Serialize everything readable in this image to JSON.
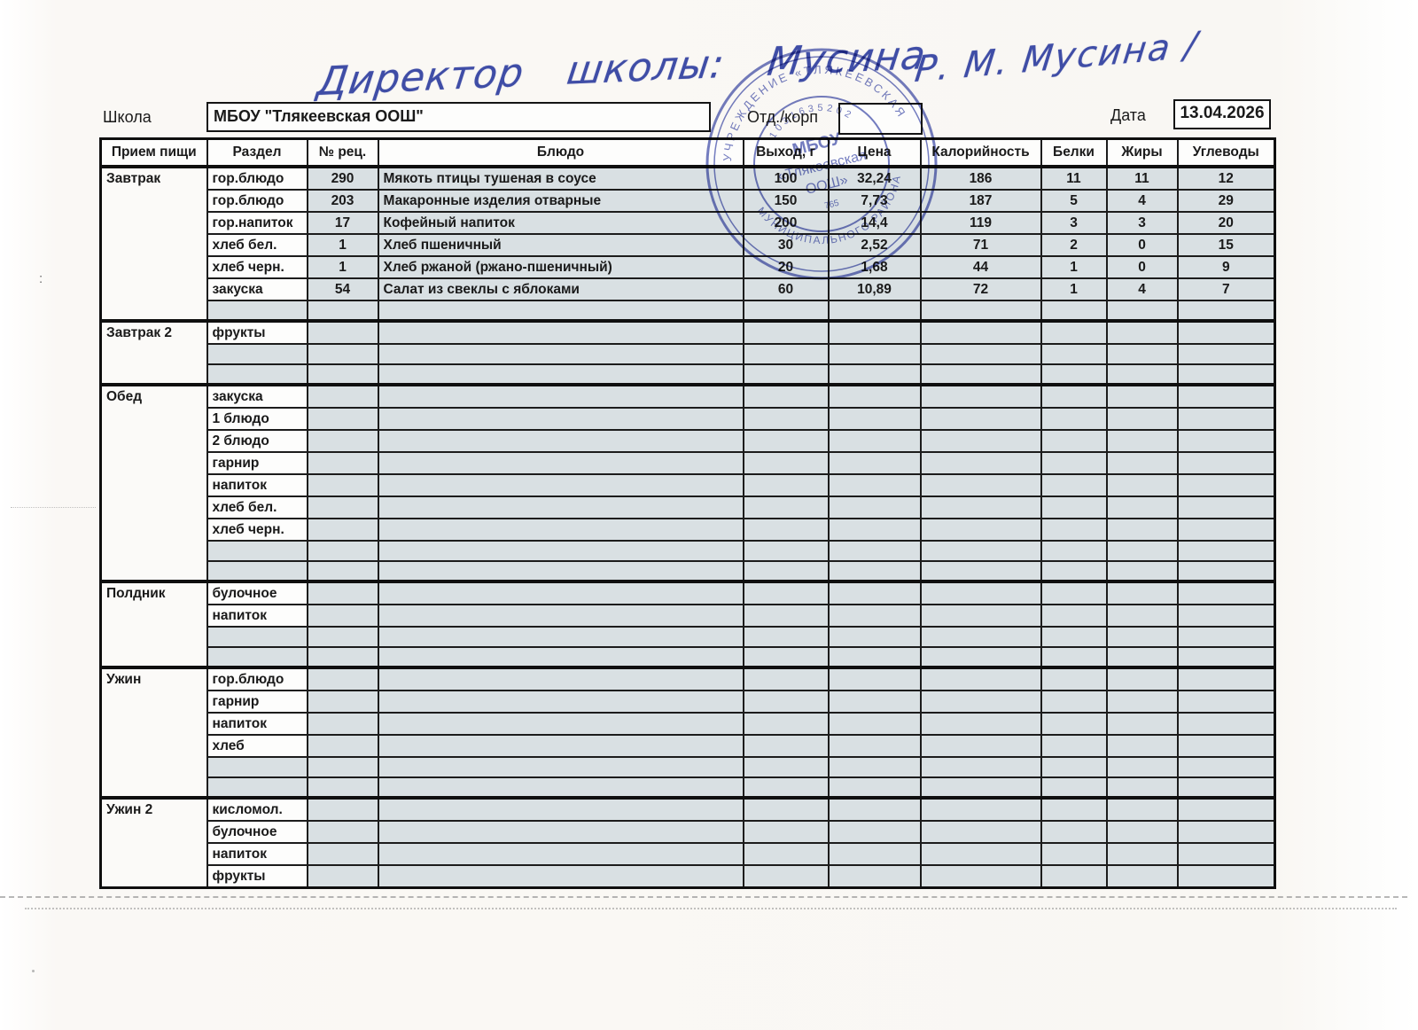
{
  "handwriting": {
    "line1": "Директор школы: Мусина",
    "line2": "Р. М. Мусина /"
  },
  "header": {
    "school_label": "Школа",
    "school_value": "МБОУ \"Тлякеевская ООШ\"",
    "dept_label": "Отд./корп",
    "dept_value": "",
    "date_label": "Дата",
    "date_value": "13.04.2026"
  },
  "stamp": {
    "ring_text_top": "УЧРЕЖДЕНИЕ «ТЛЯКЕЕВСКАЯ",
    "ring_text_bottom": "МУНИЦИПАЛЬНОГО РАЙОНА",
    "ogrn_digits": "1031635202",
    "center_line1": "МБОУ",
    "center_line2": "«Тлякеевская",
    "center_line3": "ООШ»",
    "small_digits": "765"
  },
  "table": {
    "columns": [
      "Прием пищи",
      "Раздел",
      "№ рец.",
      "Блюдо",
      "Выход, г",
      "Цена",
      "Калорийность",
      "Белки",
      "Жиры",
      "Углеводы"
    ],
    "sections": [
      {
        "meal": "Завтрак",
        "rows": [
          {
            "razdel": "гор.блюдо",
            "num": "290",
            "dish": "Мякоть птицы тушеная в соусе",
            "out": "100",
            "price": "32,24",
            "kcal": "186",
            "protein": "11",
            "fat": "11",
            "carbs": "12"
          },
          {
            "razdel": "гор.блюдо",
            "num": "203",
            "dish": "Макаронные изделия отварные",
            "out": "150",
            "price": "7,73",
            "kcal": "187",
            "protein": "5",
            "fat": "4",
            "carbs": "29"
          },
          {
            "razdel": "гор.напиток",
            "num": "17",
            "dish": "Кофейный напиток",
            "out": "200",
            "price": "14,4",
            "kcal": "119",
            "protein": "3",
            "fat": "3",
            "carbs": "20"
          },
          {
            "razdel": "хлеб бел.",
            "num": "1",
            "dish": "Хлеб пшеничный",
            "out": "30",
            "price": "2,52",
            "kcal": "71",
            "protein": "2",
            "fat": "0",
            "carbs": "15"
          },
          {
            "razdel": "хлеб черн.",
            "num": "1",
            "dish": "Хлеб ржаной (ржано-пшеничный)",
            "out": "20",
            "price": "1,68",
            "kcal": "44",
            "protein": "1",
            "fat": "0",
            "carbs": "9"
          },
          {
            "razdel": "закуска",
            "num": "54",
            "dish": "Салат из свеклы с яблоками",
            "out": "60",
            "price": "10,89",
            "kcal": "72",
            "protein": "1",
            "fat": "4",
            "carbs": "7"
          },
          {}
        ]
      },
      {
        "meal": "Завтрак 2",
        "rows": [
          {
            "razdel": "фрукты"
          },
          {},
          {}
        ]
      },
      {
        "meal": "Обед",
        "rows": [
          {
            "razdel": "закуска"
          },
          {
            "razdel": "1 блюдо"
          },
          {
            "razdel": "2 блюдо"
          },
          {
            "razdel": "гарнир"
          },
          {
            "razdel": "напиток"
          },
          {
            "razdel": "хлеб бел."
          },
          {
            "razdel": "хлеб черн."
          },
          {},
          {}
        ]
      },
      {
        "meal": "Полдник",
        "rows": [
          {
            "razdel": "булочное"
          },
          {
            "razdel": "напиток"
          },
          {},
          {}
        ]
      },
      {
        "meal": "Ужин",
        "rows": [
          {
            "razdel": "гор.блюдо"
          },
          {
            "razdel": "гарнир"
          },
          {
            "razdel": "напиток"
          },
          {
            "razdel": "хлеб"
          },
          {},
          {}
        ]
      },
      {
        "meal": "Ужин 2",
        "rows": [
          {
            "razdel": "кисломол."
          },
          {
            "razdel": "булочное"
          },
          {
            "razdel": "напиток"
          },
          {
            "razdel": "фрукты"
          }
        ]
      }
    ]
  }
}
